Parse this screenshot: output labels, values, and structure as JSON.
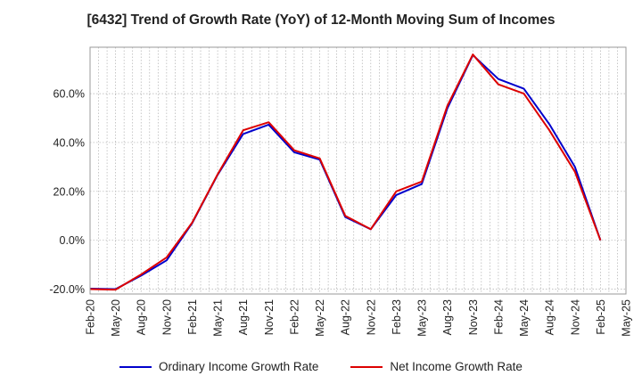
{
  "chart_data": {
    "type": "line",
    "title": "[6432]  Trend of Growth Rate (YoY) of 12-Month Moving Sum of Incomes",
    "xlabel": "",
    "ylabel": "",
    "x_ticks": [
      "Feb-20",
      "May-20",
      "Aug-20",
      "Nov-20",
      "Feb-21",
      "May-21",
      "Aug-21",
      "Nov-21",
      "Feb-22",
      "May-22",
      "Aug-22",
      "Nov-22",
      "Feb-23",
      "May-23",
      "Aug-23",
      "Nov-23",
      "Feb-24",
      "May-24",
      "Aug-24",
      "Nov-24",
      "Feb-25",
      "May-25"
    ],
    "y_ticks": [
      "-20.0%",
      "0.0%",
      "20.0%",
      "40.0%",
      "60.0%"
    ],
    "y_tick_values": [
      -20,
      0,
      20,
      40,
      60
    ],
    "ylim": [
      -22,
      79
    ],
    "grid": true,
    "legend_position": "bottom",
    "series": [
      {
        "name": "Ordinary Income Growth Rate",
        "color": "#0000cc",
        "values": [
          -19.8,
          -20.0,
          -14.5,
          -8.2,
          7.0,
          26.8,
          43.5,
          47.3,
          36.0,
          33.0,
          9.5,
          4.5,
          18.5,
          23.0,
          54.0,
          75.8,
          66.0,
          62.0,
          47.5,
          30.0,
          0.0
        ]
      },
      {
        "name": "Net Income Growth Rate",
        "color": "#dd0000",
        "values": [
          -20.0,
          -20.2,
          -14.0,
          -7.0,
          7.2,
          27.0,
          45.0,
          48.3,
          36.8,
          33.5,
          10.0,
          4.5,
          20.0,
          24.0,
          55.0,
          76.0,
          63.8,
          60.0,
          45.0,
          28.0,
          0.0
        ]
      }
    ]
  }
}
